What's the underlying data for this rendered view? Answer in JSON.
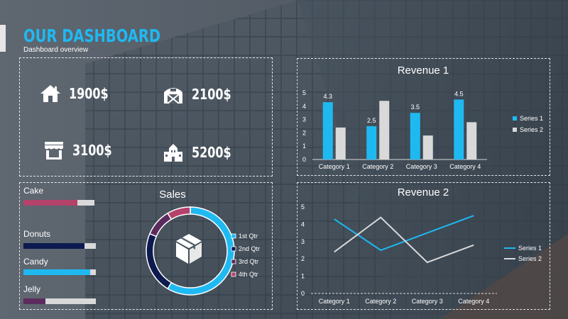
{
  "header": {
    "title": "OUR DASHBOARD",
    "subtitle": "Dashboard overview"
  },
  "kpis": [
    {
      "icon": "house-icon",
      "value": "1900$"
    },
    {
      "icon": "barn-icon",
      "value": "2100$"
    },
    {
      "icon": "storefront-icon",
      "value": "3100$"
    },
    {
      "icon": "factory-icon",
      "value": "5200$"
    }
  ],
  "products": [
    {
      "label": "Cake",
      "fraction": 0.76,
      "color": "#b5426a"
    },
    {
      "label": "Donuts",
      "fraction": 0.84,
      "color": "#0c1a4f"
    },
    {
      "label": "Candy",
      "fraction": 0.92,
      "color": "#1fb9f2"
    },
    {
      "label": "Jelly",
      "fraction": 0.3,
      "color": "#5c2b5e"
    }
  ],
  "colors": {
    "accent": "#1fb9f2",
    "series1": "#1fb9f2",
    "series2": "#d9d9d9",
    "navy": "#0c1a4f",
    "plum": "#5c2b5e",
    "rose": "#b5426a"
  },
  "chart_data": [
    {
      "type": "bar",
      "title": "Revenue 1",
      "categories": [
        "Category 1",
        "Category 2",
        "Category 3",
        "Category 4"
      ],
      "series": [
        {
          "name": "Series 1",
          "values": [
            4.3,
            2.5,
            3.5,
            4.5
          ],
          "data_labels": [
            "4.3",
            "2.5",
            "3.5",
            "4.5"
          ]
        },
        {
          "name": "Series 2",
          "values": [
            2.4,
            4.4,
            1.8,
            2.8
          ]
        }
      ],
      "ylim": [
        0,
        5
      ],
      "yticks": [
        "0",
        "1",
        "2",
        "3",
        "4",
        "5"
      ],
      "grid": false,
      "legend": "right"
    },
    {
      "type": "pie",
      "title": "Sales",
      "categories": [
        "1st Qtr",
        "2nd Qtr",
        "3rd Qtr",
        "4th Qtr"
      ],
      "values": [
        8.2,
        3.2,
        1.4,
        1.2
      ],
      "colors": [
        "#1fb9f2",
        "#0c1a4f",
        "#5c2b5e",
        "#b5426a"
      ],
      "center_icon": "box-icon",
      "legend": "right"
    },
    {
      "type": "line",
      "title": "Revenue 2",
      "categories": [
        "Category 1",
        "Category 2",
        "Category 3",
        "Category 4"
      ],
      "series": [
        {
          "name": "Series 1",
          "values": [
            4.3,
            2.5,
            3.5,
            4.5
          ]
        },
        {
          "name": "Series 2",
          "values": [
            2.4,
            4.4,
            1.8,
            2.8
          ]
        }
      ],
      "ylim": [
        0,
        5
      ],
      "yticks": [
        "0",
        "1",
        "2",
        "3",
        "4",
        "5"
      ],
      "grid": false,
      "legend": "right"
    }
  ]
}
